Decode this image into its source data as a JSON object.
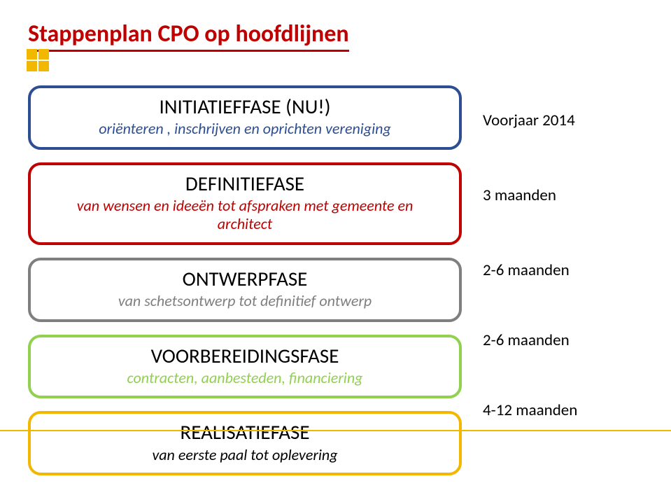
{
  "title": {
    "text": "Stappenplan CPO op hoofdlijnen",
    "color": "#c00000",
    "underline_color": "#c00000"
  },
  "logo_color": "#f2b800",
  "footer_color": "#f2b800",
  "phase_border_width": 4,
  "phases": [
    {
      "title": "INITIATIEFFASE (NU!)",
      "subtitle": "oriënteren , inschrijven en oprichten vereniging",
      "border_color": "#2d4e93",
      "title_color": "#000000",
      "subtitle_color": "#2d4e93",
      "duration": "Voorjaar 2014",
      "height": 82
    },
    {
      "title": "DEFINITIEFASE",
      "subtitle": "van wensen en ideeën tot afspraken met gemeente en architect",
      "border_color": "#c00000",
      "title_color": "#000000",
      "subtitle_color": "#c00000",
      "duration": "3 maanden",
      "height": 96
    },
    {
      "title": "ONTWERPFASE",
      "subtitle": "van schetsontwerp tot definitief ontwerp",
      "border_color": "#7f7f7f",
      "title_color": "#000000",
      "subtitle_color": "#7f7f7f",
      "duration": "2-6 maanden",
      "height": 82
    },
    {
      "title": "VOORBEREIDINGSFASE",
      "subtitle": "contracten, aanbesteden, financiering",
      "border_color": "#92d050",
      "title_color": "#000000",
      "subtitle_color": "#92d050",
      "duration": "2-6 maanden",
      "height": 82
    },
    {
      "title": "REALISATIEFASE",
      "subtitle": "van eerste paal tot oplevering",
      "border_color": "#f2b800",
      "title_color": "#000000",
      "subtitle_color": "#000000",
      "duration": "4-12 maanden",
      "height": 82
    }
  ],
  "duration_color": "#000000"
}
